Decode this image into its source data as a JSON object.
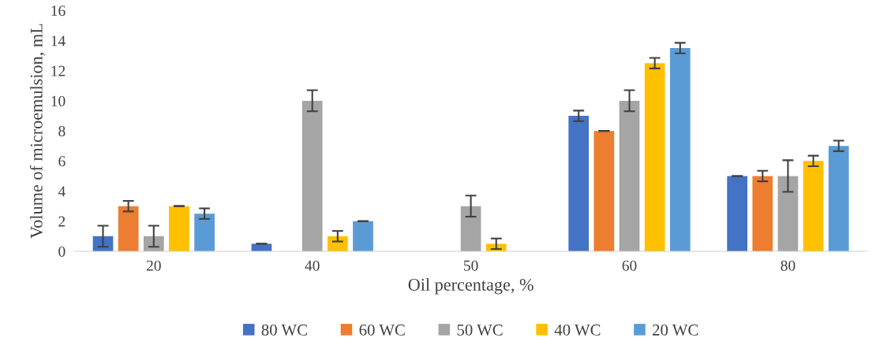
{
  "chart_data": {
    "type": "bar",
    "xlabel": "Oil percentage, %",
    "ylabel": "Volume of microemulsion, mL",
    "categories": [
      "20",
      "40",
      "50",
      "60",
      "80"
    ],
    "series": [
      {
        "name": "80 WC",
        "color": "#4472c4",
        "values": [
          1,
          0.5,
          null,
          9,
          5
        ],
        "errors": [
          0.7,
          0,
          null,
          0.35,
          0
        ]
      },
      {
        "name": "60 WC",
        "color": "#ed7d31",
        "values": [
          3,
          null,
          null,
          8,
          5
        ],
        "errors": [
          0.35,
          null,
          null,
          0,
          0.35
        ]
      },
      {
        "name": "50 WC",
        "color": "#a5a5a5",
        "values": [
          1,
          10,
          3,
          10,
          5
        ],
        "errors": [
          0.7,
          0.7,
          0.7,
          0.7,
          1.05
        ]
      },
      {
        "name": "40 WC",
        "color": "#ffc000",
        "values": [
          3,
          1,
          0.5,
          12.5,
          6
        ],
        "errors": [
          0,
          0.35,
          0.35,
          0.35,
          0.35
        ]
      },
      {
        "name": "20 WC",
        "color": "#5b9bd5",
        "values": [
          2.5,
          2,
          null,
          13.5,
          7
        ],
        "errors": [
          0.35,
          0,
          null,
          0.35,
          0.35
        ]
      }
    ],
    "ylim": [
      0,
      16
    ],
    "yticks": [
      0,
      2,
      4,
      6,
      8,
      10,
      12,
      14,
      16
    ],
    "grid": false,
    "legend": "bottom"
  }
}
